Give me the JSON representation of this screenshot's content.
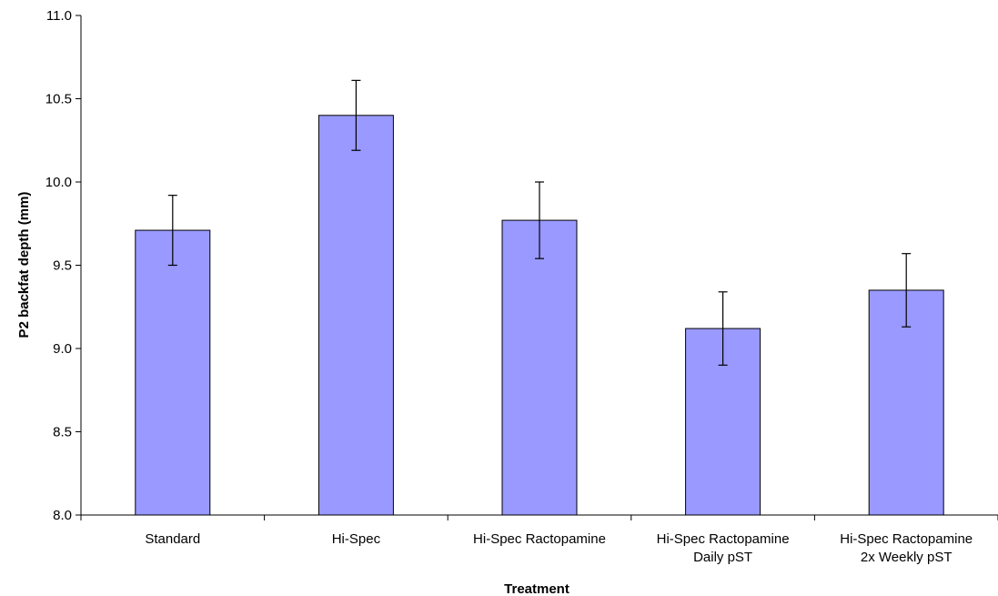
{
  "chart_data": {
    "type": "bar",
    "xlabel": "Treatment",
    "ylabel": "P2 backfat depth (mm)",
    "ylim": [
      8.0,
      11.0
    ],
    "yticks": [
      "8.0",
      "8.5",
      "9.0",
      "9.5",
      "10.0",
      "10.5",
      "11.0"
    ],
    "categories": [
      [
        "Standard"
      ],
      [
        "Hi-Spec"
      ],
      [
        "Hi-Spec Ractopamine"
      ],
      [
        "Hi-Spec Ractopamine",
        "Daily pST"
      ],
      [
        "Hi-Spec Ractopamine",
        "2x Weekly pST"
      ]
    ],
    "values": [
      9.71,
      10.4,
      9.77,
      9.12,
      9.35
    ],
    "error_low": [
      9.5,
      10.19,
      9.54,
      8.9,
      9.13
    ],
    "error_high": [
      9.92,
      10.61,
      10.0,
      9.34,
      9.57
    ],
    "bar_color": "#9999ff",
    "bar_edge_color": "#000000",
    "grid": false,
    "legend": "none"
  }
}
